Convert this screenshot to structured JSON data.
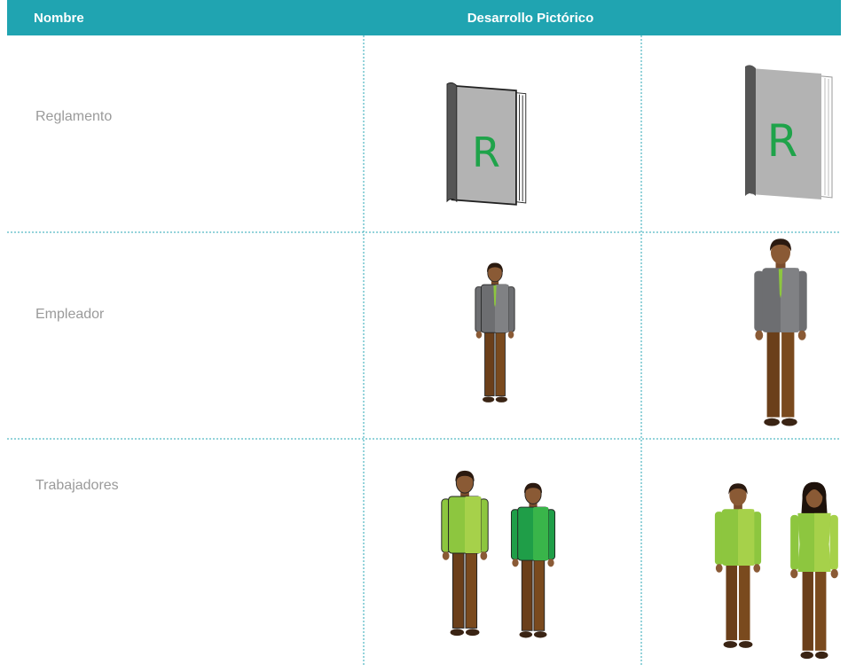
{
  "table": {
    "header": [
      "Nombre",
      "Desarrollo Pictórico"
    ],
    "rows": [
      {
        "name": "Reglamento",
        "icon_text": [
          "R",
          "R"
        ]
      },
      {
        "name": "Empleador"
      },
      {
        "name": "Trabajadores"
      }
    ]
  }
}
